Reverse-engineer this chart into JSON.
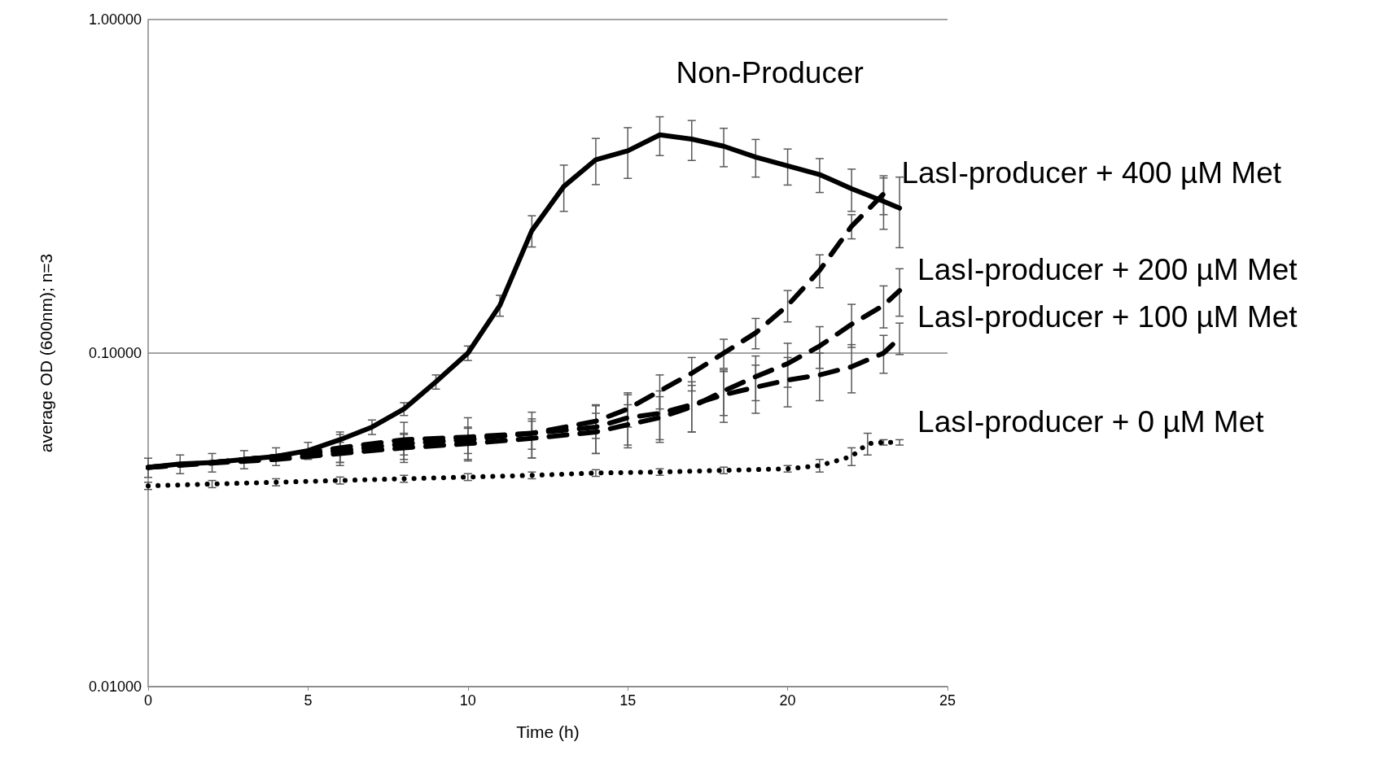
{
  "chart_data": {
    "type": "line",
    "xlabel": "Time (h)",
    "ylabel": "average OD (600nm); n=3",
    "xlim": [
      0,
      25
    ],
    "xticks": [
      0,
      5,
      10,
      15,
      20,
      25
    ],
    "ylim": [
      0.01,
      1
    ],
    "yticks": [
      {
        "value": 0.01,
        "label": "0.01000"
      },
      {
        "value": 0.1,
        "label": "0.10000"
      },
      {
        "value": 1,
        "label": "1.00000"
      }
    ],
    "log": "y",
    "grid": "y",
    "legend": false,
    "marker": "none",
    "series": [
      {
        "name": "Non-Producer",
        "color": "#000000",
        "line_style": "solid",
        "x": [
          0,
          1,
          2,
          3,
          4,
          5,
          6,
          7,
          8,
          9,
          10,
          11,
          12,
          13,
          14,
          15,
          16,
          17,
          18,
          19,
          20,
          21,
          22,
          23,
          23.5
        ],
        "values": [
          0.0454,
          0.0465,
          0.047,
          0.048,
          0.049,
          0.051,
          0.055,
          0.06,
          0.068,
          0.082,
          0.1,
          0.139,
          0.233,
          0.316,
          0.38,
          0.404,
          0.451,
          0.438,
          0.417,
          0.387,
          0.364,
          0.343,
          0.311,
          0.285,
          0.272
        ],
        "errors": [
          0.003,
          0.003,
          0.003,
          0.003,
          0.003,
          0.003,
          0.003,
          0.003,
          0.003,
          0.004,
          0.005,
          0.01,
          0.025,
          0.05,
          0.06,
          0.07,
          0.06,
          0.06,
          0.055,
          0.05,
          0.045,
          0.04,
          0.045,
          0.05,
          0.065
        ]
      },
      {
        "name": "LasI-producer + 400 µM Met",
        "color": "#000000",
        "line_style": "dashed",
        "x": [
          0,
          2,
          4,
          6,
          8,
          10,
          12,
          14,
          15,
          16,
          17,
          18,
          19,
          20,
          21,
          22,
          23
        ],
        "values": [
          0.0454,
          0.047,
          0.049,
          0.051,
          0.0535,
          0.055,
          0.0575,
          0.0625,
          0.068,
          0.077,
          0.087,
          0.1,
          0.115,
          0.139,
          0.177,
          0.24,
          0.3
        ],
        "errors": [
          null,
          null,
          null,
          0.004,
          0.004,
          0.005,
          0.006,
          0.007,
          0.008,
          0.009,
          0.01,
          0.01,
          0.012,
          0.015,
          0.02,
          0.02,
          0.04
        ]
      },
      {
        "name": "LasI-producer + 200 µM Met",
        "color": "#000000",
        "line_style": "dashed",
        "x": [
          0,
          2,
          4,
          6,
          8,
          10,
          12,
          14,
          15,
          16,
          17,
          18,
          19,
          20,
          21,
          22,
          23,
          23.5
        ],
        "values": [
          0.0454,
          0.0468,
          0.048,
          0.05,
          0.052,
          0.0535,
          0.0555,
          0.058,
          0.061,
          0.064,
          0.069,
          0.077,
          0.085,
          0.093,
          0.105,
          0.122,
          0.139,
          0.154
        ],
        "errors": [
          null,
          null,
          null,
          0.004,
          0.005,
          0.006,
          0.007,
          0.008,
          0.009,
          0.01,
          0.011,
          0.012,
          0.013,
          0.014,
          0.015,
          0.018,
          0.02,
          0.025
        ]
      },
      {
        "name": "LasI-producer + 100 µM Met",
        "color": "#000000",
        "line_style": "dashed",
        "x": [
          0,
          2,
          4,
          6,
          8,
          10,
          12,
          14,
          15,
          16,
          17,
          18,
          19,
          20,
          21,
          22,
          23,
          23.5
        ],
        "values": [
          0.0455,
          0.047,
          0.049,
          0.052,
          0.055,
          0.056,
          0.0575,
          0.06,
          0.064,
          0.066,
          0.07,
          0.075,
          0.079,
          0.083,
          0.086,
          0.091,
          0.1,
          0.111
        ],
        "errors": [
          null,
          null,
          null,
          0.005,
          0.007,
          0.008,
          0.009,
          0.01,
          0.011,
          0.011,
          0.012,
          0.013,
          0.013,
          0.014,
          0.014,
          0.015,
          0.013,
          0.012
        ]
      },
      {
        "name": "LasI-producer + 0 µM Met",
        "color": "#000000",
        "line_style": "dotted",
        "x": [
          0,
          2,
          4,
          6,
          8,
          10,
          12,
          14,
          16,
          18,
          20,
          21,
          22,
          22.5,
          23,
          23.5
        ],
        "values": [
          0.04,
          0.0405,
          0.041,
          0.0415,
          0.042,
          0.0425,
          0.043,
          0.0437,
          0.044,
          0.0445,
          0.045,
          0.046,
          0.049,
          0.0535,
          0.054,
          0.054
        ],
        "errors": [
          0.001,
          0.001,
          0.001,
          0.001,
          0.001,
          0.001,
          0.001,
          0.001,
          0.001,
          0.001,
          0.001,
          0.002,
          0.003,
          0.004,
          0.001,
          0.001
        ]
      }
    ]
  }
}
